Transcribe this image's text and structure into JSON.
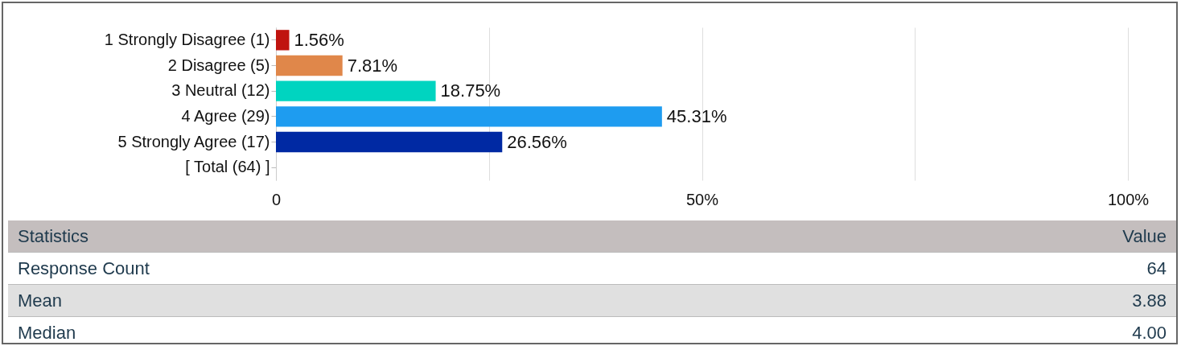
{
  "chart_data": [
    {
      "type": "bar",
      "orientation": "horizontal",
      "categories": [
        "1 Strongly Disagree (1)",
        "2 Disagree (5)",
        "3 Neutral (12)",
        "4 Agree (29)",
        "5 Strongly Agree (17)",
        "[ Total (64) ]"
      ],
      "values": [
        1.56,
        7.81,
        18.75,
        45.31,
        26.56,
        null
      ],
      "value_labels": [
        "1.56%",
        "7.81%",
        "18.75%",
        "45.31%",
        "26.56%",
        null
      ],
      "colors": [
        "#c0140f",
        "#e0874a",
        "#00d4c0",
        "#1e9cf0",
        "#0029a3",
        null
      ],
      "xlim": [
        0,
        100
      ],
      "xticks": [
        0,
        {
          "value": 25,
          "label": null
        },
        {
          "value": 50,
          "label": "50%"
        },
        {
          "value": 75,
          "label": null
        },
        {
          "value": 100,
          "label": "100%"
        }
      ],
      "grid": "x"
    },
    {
      "type": "other",
      "annotations": [
        "Statistics",
        "Value",
        "Response Count",
        "64",
        "Mean",
        "3.88",
        "Median",
        "4.00"
      ]
    }
  ]
}
